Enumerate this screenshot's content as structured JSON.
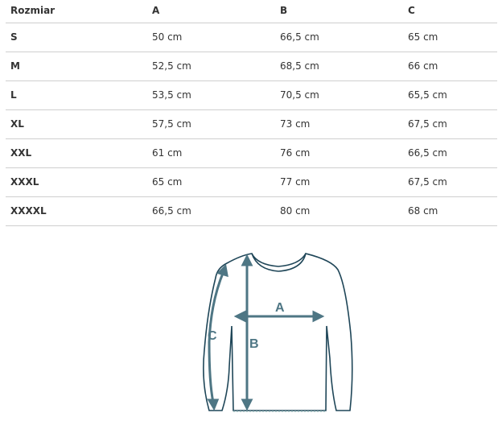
{
  "table": {
    "headers": [
      "Rozmiar",
      "A",
      "B",
      "C"
    ],
    "rows": [
      [
        "S",
        "50 cm",
        "66,5 cm",
        "65 cm"
      ],
      [
        "M",
        "52,5 cm",
        "68,5 cm",
        "66 cm"
      ],
      [
        "L",
        "53,5 cm",
        "70,5 cm",
        "65,5 cm"
      ],
      [
        "XL",
        "57,5 cm",
        "73 cm",
        "67,5 cm"
      ],
      [
        "XXL",
        "61 cm",
        "76 cm",
        "66,5 cm"
      ],
      [
        "XXXL",
        "65 cm",
        "77 cm",
        "67,5 cm"
      ],
      [
        "XXXXL",
        "66,5 cm",
        "80 cm",
        "68 cm"
      ]
    ]
  },
  "diagram": {
    "labels": {
      "a": "A",
      "b": "B",
      "c": "C"
    },
    "colors": {
      "outline": "#1f4658",
      "arrow": "#4e7684"
    }
  }
}
